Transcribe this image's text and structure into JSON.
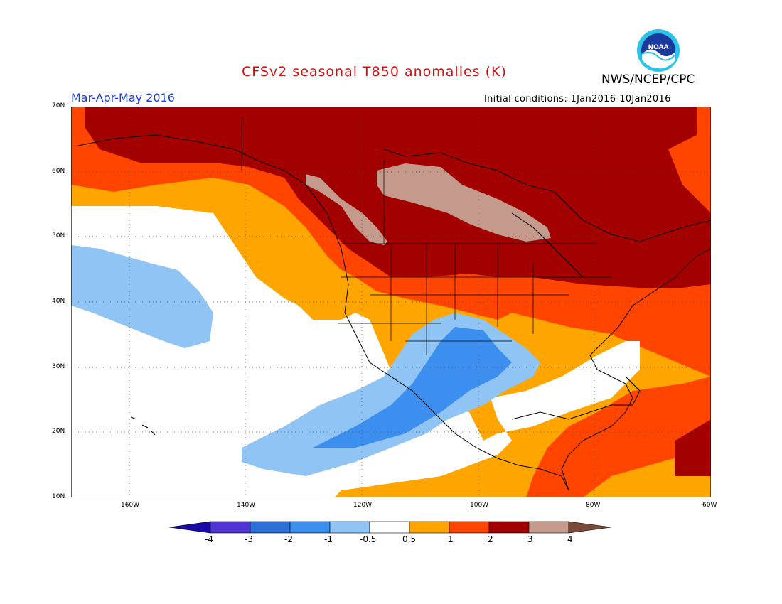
{
  "header": {
    "title": "CFSv2 seasonal T850 anomalies (K)",
    "organization": "NWS/NCEP/CPC",
    "logo_text": "NOAA",
    "season": "Mar-Apr-May 2016",
    "initial_conditions": "Initial conditions: 1Jan2016-10Jan2016"
  },
  "axes": {
    "lat_labels": [
      "70N",
      "60N",
      "50N",
      "40N",
      "30N",
      "20N",
      "10N"
    ],
    "lon_labels": [
      "160W",
      "140W",
      "120W",
      "100W",
      "80W",
      "60W"
    ]
  },
  "colorbar": {
    "labels": [
      "-4",
      "-3",
      "-2",
      "-1",
      "-0.5",
      "0.5",
      "1",
      "2",
      "3",
      "4"
    ],
    "colors": [
      "#1a0aa8",
      "#5035d0",
      "#2f6fd8",
      "#3d8fef",
      "#8fc4f5",
      "#ffffff",
      "#ffa500",
      "#ff4500",
      "#a30000",
      "#c49a8c",
      "#7a4a3a"
    ]
  },
  "colors": {
    "title": "#d01010",
    "season": "#1a3fd6"
  }
}
